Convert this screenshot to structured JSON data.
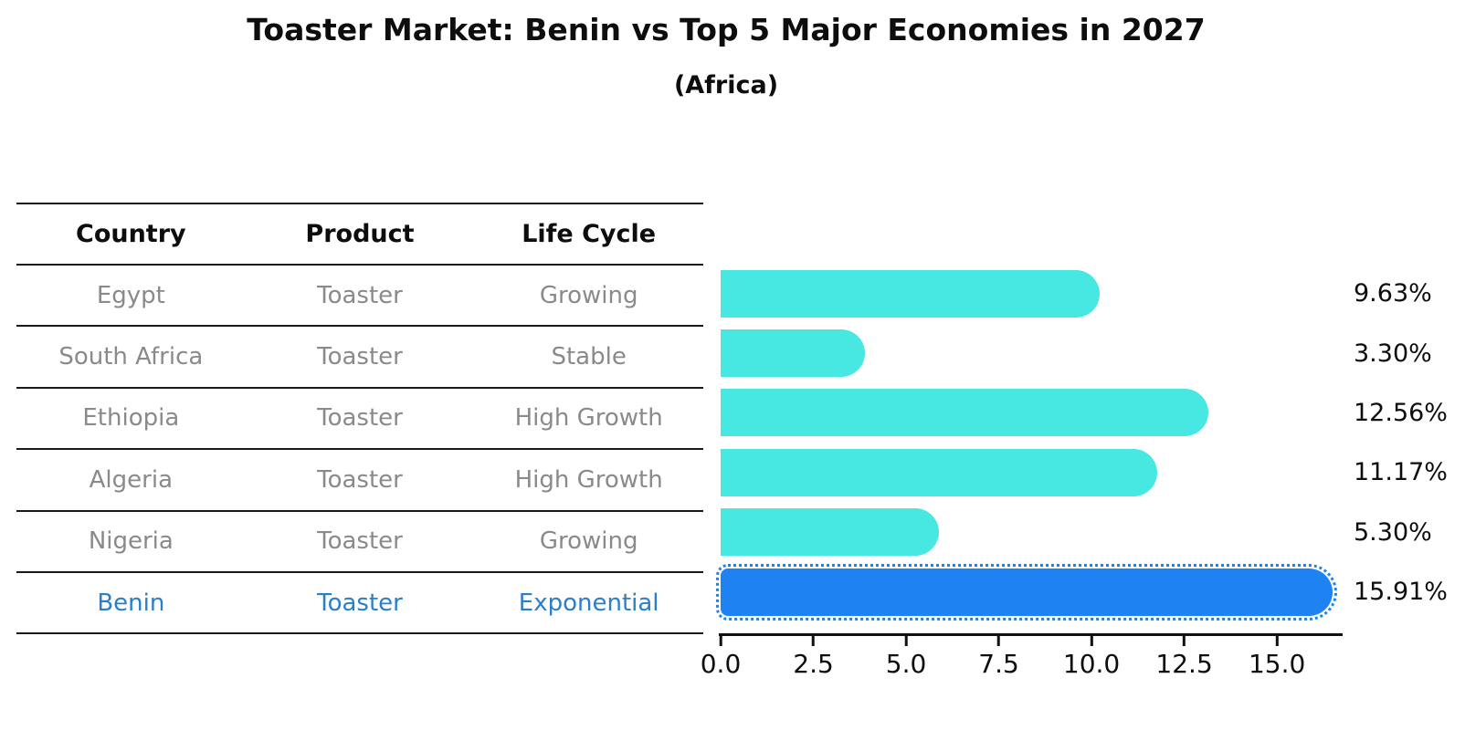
{
  "figure": {
    "title": "Toaster Market: Benin vs Top 5 Major Economies in 2027",
    "subtitle": "(Africa)"
  },
  "table": {
    "headers": [
      "Country",
      "Product",
      "Life Cycle"
    ],
    "rows": [
      {
        "country": "Egypt",
        "product": "Toaster",
        "life_cycle": "Growing"
      },
      {
        "country": "South Africa",
        "product": "Toaster",
        "life_cycle": "Stable"
      },
      {
        "country": "Ethiopia",
        "product": "Toaster",
        "life_cycle": "High Growth"
      },
      {
        "country": "Algeria",
        "product": "Toaster",
        "life_cycle": "High Growth"
      },
      {
        "country": "Nigeria",
        "product": "Toaster",
        "life_cycle": "Growing"
      },
      {
        "country": "Benin",
        "product": "Toaster",
        "life_cycle": "Exponential"
      }
    ],
    "highlight_row_index": 5
  },
  "chart_data": {
    "type": "bar",
    "orientation": "horizontal",
    "title": "Toaster Market: Benin vs Top 5 Major Economies in 2027",
    "subtitle": "(Africa)",
    "categories": [
      "Egypt",
      "South Africa",
      "Ethiopia",
      "Algeria",
      "Nigeria",
      "Benin"
    ],
    "values": [
      9.63,
      3.3,
      12.56,
      11.17,
      5.3,
      15.91
    ],
    "value_labels": [
      "9.63%",
      "3.30%",
      "12.56%",
      "11.17%",
      "5.30%",
      "15.91%"
    ],
    "xlabel": "",
    "ylabel": "",
    "xlim": [
      0,
      16.77
    ],
    "xticks": [
      0.0,
      2.5,
      5.0,
      7.5,
      10.0,
      12.5,
      15.0
    ],
    "xtick_labels": [
      "0.0",
      "2.5",
      "5.0",
      "7.5",
      "10.0",
      "12.5",
      "15.0"
    ],
    "grid": false,
    "legend": false,
    "bar_color": "#47e8e1",
    "highlight_bar_color": "#1e82f0",
    "highlight_index": 5,
    "highlight_edge_style": "dotted"
  },
  "colors": {
    "background": "#ffffff",
    "title_text": "#0d0d0d",
    "table_header_text": "#0d0d0d",
    "table_row_text": "#8a8a8a",
    "highlight_row_text": "#2b7ec8",
    "table_line": "#1a1a1a",
    "axis_line": "#111111",
    "value_label_text": "#0d0d0d"
  }
}
